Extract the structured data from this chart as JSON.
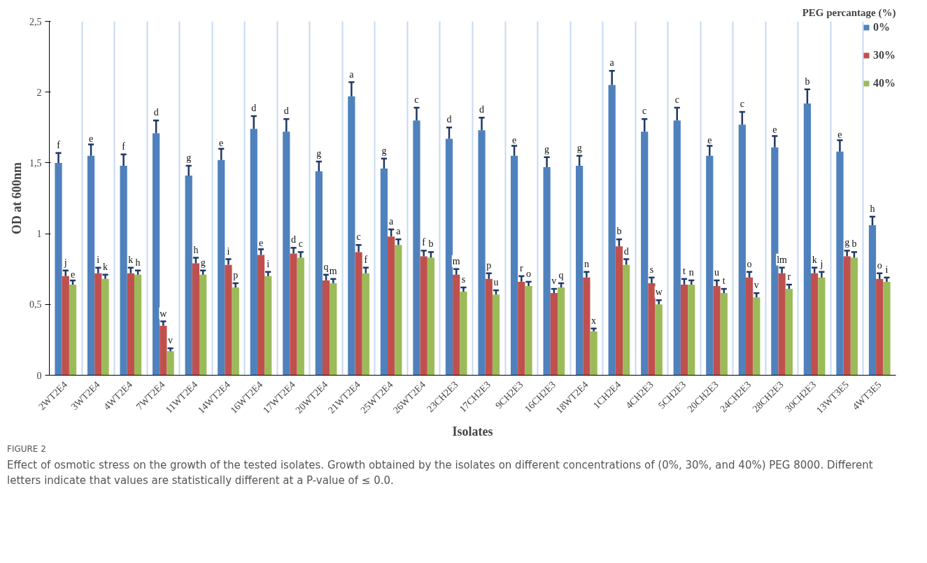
{
  "chart_data": {
    "type": "bar",
    "xlabel": "Isolates",
    "ylabel": "OD at 600nm",
    "legend_title": "PEG percantage (%)",
    "categories": [
      "2WT2E4",
      "3WT2E4",
      "4WT2E4",
      "7WT2E4",
      "11WT2E4",
      "14WT2E4",
      "16WT2E4",
      "17WT2E4",
      "20WT2E4",
      "21WT2E4",
      "25WT2E4",
      "26WT2E4",
      "23CH2E3",
      "17CH2E3",
      "9CH2E3",
      "16CH2E3",
      "18WT2E4",
      "1CH2E4",
      "4CH2E3",
      "5CH2E3",
      "20CH2E3",
      "24CH2E3",
      "28CH2E3",
      "30CH2E3",
      "13WT3E5",
      "4WT3E5"
    ],
    "series": [
      {
        "name": "0%",
        "color": "#4f81bd",
        "values": [
          1.5,
          1.55,
          1.48,
          1.71,
          1.41,
          1.52,
          1.74,
          1.72,
          1.44,
          1.97,
          1.46,
          1.8,
          1.67,
          1.73,
          1.55,
          1.47,
          1.48,
          2.05,
          1.72,
          1.8,
          1.55,
          1.77,
          1.61,
          1.92,
          1.58,
          1.06
        ],
        "errors": [
          0.07,
          0.08,
          0.08,
          0.09,
          0.07,
          0.08,
          0.09,
          0.09,
          0.07,
          0.1,
          0.07,
          0.09,
          0.08,
          0.09,
          0.07,
          0.07,
          0.07,
          0.1,
          0.09,
          0.09,
          0.07,
          0.09,
          0.08,
          0.1,
          0.08,
          0.06
        ],
        "value_labels": [
          "f",
          "e",
          "f",
          "d",
          "g",
          "e",
          "d",
          "d",
          "g",
          "a",
          "g",
          "c",
          "d",
          "d",
          "e",
          "g",
          "g",
          "a",
          "c",
          "c",
          "e",
          "c",
          "e",
          "b",
          "e",
          "h"
        ]
      },
      {
        "name": "30%",
        "color": "#c0504d",
        "values": [
          0.7,
          0.72,
          0.72,
          0.35,
          0.79,
          0.78,
          0.85,
          0.86,
          0.67,
          0.87,
          0.98,
          0.84,
          0.71,
          0.68,
          0.66,
          0.58,
          0.69,
          0.91,
          0.65,
          0.64,
          0.63,
          0.69,
          0.72,
          0.72,
          0.84,
          0.68
        ],
        "errors": [
          0.04,
          0.04,
          0.04,
          0.03,
          0.04,
          0.04,
          0.04,
          0.04,
          0.04,
          0.05,
          0.05,
          0.04,
          0.04,
          0.04,
          0.04,
          0.03,
          0.04,
          0.05,
          0.04,
          0.04,
          0.04,
          0.04,
          0.04,
          0.04,
          0.04,
          0.04
        ],
        "value_labels": [
          "j",
          "i",
          "k",
          "w",
          "h",
          "i",
          "e",
          "d",
          "q",
          "c",
          "a",
          "f",
          "m",
          "p",
          "r",
          "v",
          "n",
          "b",
          "s",
          "t",
          "u",
          "o",
          "lm",
          "k",
          "g",
          "o"
        ]
      },
      {
        "name": "40%",
        "color": "#9bbb59",
        "values": [
          0.64,
          0.68,
          0.71,
          0.17,
          0.71,
          0.62,
          0.7,
          0.83,
          0.65,
          0.72,
          0.92,
          0.83,
          0.59,
          0.57,
          0.63,
          0.62,
          0.31,
          0.78,
          0.5,
          0.64,
          0.58,
          0.55,
          0.61,
          0.69,
          0.83,
          0.66
        ],
        "errors": [
          0.03,
          0.03,
          0.03,
          0.02,
          0.03,
          0.03,
          0.03,
          0.04,
          0.03,
          0.04,
          0.04,
          0.04,
          0.03,
          0.03,
          0.03,
          0.03,
          0.02,
          0.04,
          0.03,
          0.03,
          0.03,
          0.03,
          0.03,
          0.04,
          0.04,
          0.03
        ],
        "value_labels": [
          "e",
          "k",
          "h",
          "v",
          "g",
          "p",
          "i",
          "c",
          "m",
          "f",
          "a",
          "b",
          "s",
          "u",
          "o",
          "q",
          "x",
          "d",
          "w",
          "n",
          "t",
          "v",
          "r",
          "j",
          "b",
          "i"
        ]
      }
    ],
    "ylim": [
      0,
      2.5
    ],
    "yticks": [
      0,
      {
        "value": 0.5,
        "label": "0,5"
      },
      1,
      {
        "value": 1.5,
        "label": "1,5"
      },
      2,
      {
        "value": 2.5,
        "label": "2,5"
      }
    ],
    "grid": "x",
    "legend": "top right",
    "annotations": [
      "FIGURE 2",
      "Effect of osmotic stress on the growth of the tested isolates. Growth obtained by the isolates on different concentrations of (0%, 30%, and 40%) PEG 8000. Different letters indicate that values are statistically different at a P-value of ≤ 0.0."
    ]
  }
}
